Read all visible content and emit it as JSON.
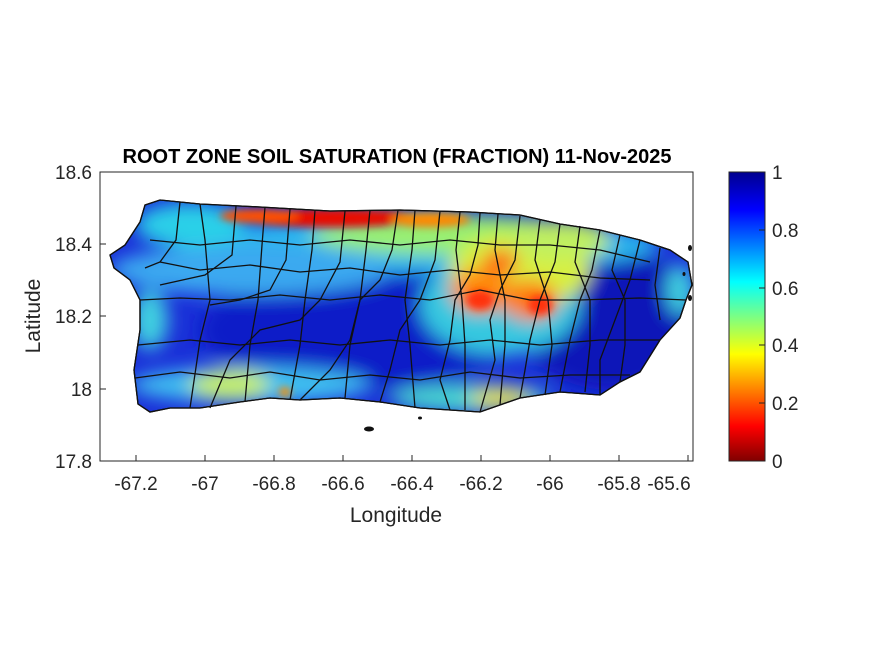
{
  "title": "ROOT ZONE SOIL SATURATION (FRACTION) 11-Nov-2025",
  "xlabel": "Longitude",
  "ylabel": "Latitude",
  "x_ticks": [
    "-67.2",
    "-67",
    "-66.8",
    "-66.6",
    "-66.4",
    "-66.2",
    "-66",
    "-65.8",
    "-65.6"
  ],
  "y_ticks": [
    "18.6",
    "18.4",
    "18.2",
    "18",
    "17.8"
  ],
  "colorbar_ticks": [
    "1",
    "0.8",
    "0.6",
    "0.4",
    "0.2",
    "0"
  ],
  "colormap": "jet",
  "colorbar_range": [
    0,
    1
  ],
  "map_extent": {
    "lon": [
      -67.3,
      -65.59
    ],
    "lat": [
      17.8,
      18.6
    ]
  },
  "region": "Puerto Rico (municipality boundaries)",
  "colors": {
    "jet": [
      "#00008f",
      "#0000ff",
      "#0080ff",
      "#00ffff",
      "#80ff80",
      "#ffff00",
      "#ff8000",
      "#ff0000",
      "#800000"
    ],
    "boundary": "#111111",
    "axis": "#262626"
  }
}
